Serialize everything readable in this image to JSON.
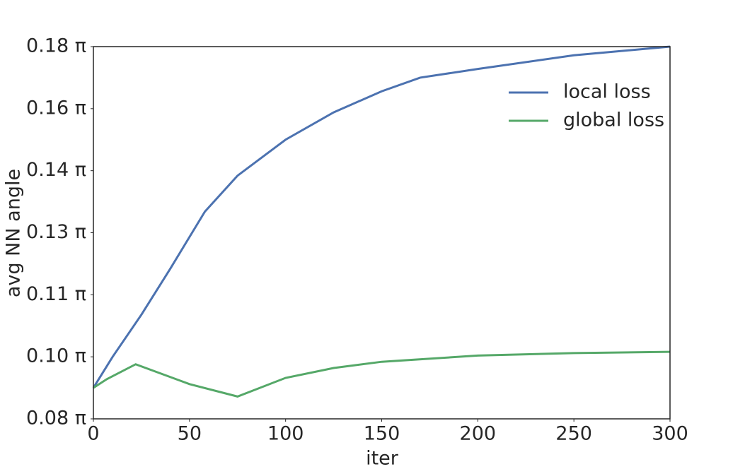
{
  "chart_data": {
    "type": "line",
    "xlabel": "iter",
    "ylabel": "avg NN angle",
    "xlim": [
      0,
      300
    ],
    "xticks": [
      0,
      50,
      100,
      150,
      200,
      250,
      300
    ],
    "ylim": [
      0.25,
      0.55
    ],
    "yticks": [
      {
        "value": 0.25,
        "label": "0.08 π"
      },
      {
        "value": 0.3,
        "label": "0.10 π"
      },
      {
        "value": 0.35,
        "label": "0.11 π"
      },
      {
        "value": 0.4,
        "label": "0.13 π"
      },
      {
        "value": 0.45,
        "label": "0.14 π"
      },
      {
        "value": 0.5,
        "label": "0.16 π"
      },
      {
        "value": 0.55,
        "label": "0.18 π"
      }
    ],
    "legend": "upper right",
    "series": [
      {
        "name": "local loss",
        "color": "#4c72b0",
        "x": [
          0,
          10,
          25,
          40,
          58,
          75,
          100,
          125,
          150,
          170,
          200,
          250,
          300
        ],
        "values": [
          0.275,
          0.3,
          0.334,
          0.371,
          0.417,
          0.446,
          0.475,
          0.497,
          0.514,
          0.525,
          0.532,
          0.543,
          0.55
        ]
      },
      {
        "name": "global loss",
        "color": "#55a868",
        "x": [
          0,
          7,
          22,
          50,
          75,
          100,
          125,
          150,
          200,
          250,
          300
        ],
        "values": [
          0.275,
          0.282,
          0.294,
          0.278,
          0.268,
          0.283,
          0.291,
          0.296,
          0.301,
          0.303,
          0.304
        ]
      }
    ]
  }
}
